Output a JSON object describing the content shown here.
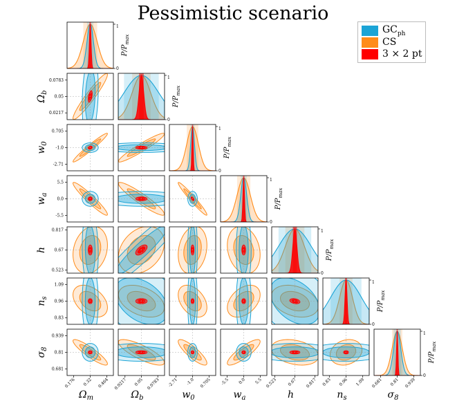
{
  "title": "Pessimistic scenario",
  "legend": [
    {
      "label": "GC",
      "sub": "ph",
      "color": "#1ba4d6"
    },
    {
      "label": "CS",
      "sub": "",
      "color": "#ff8c1a"
    },
    {
      "label": "3 × 2 pt",
      "sub": "",
      "color": "#ff0000"
    }
  ],
  "chart_data": {
    "type": "corner",
    "title": "Pessimistic scenario",
    "parameters": [
      {
        "name": "Ω",
        "sub": "m",
        "center": 0.32,
        "ticks": [
          "0.176",
          "0.32",
          "0.464"
        ],
        "tickvals": [
          0.176,
          0.32,
          0.464
        ],
        "range": [
          0.12,
          0.52
        ]
      },
      {
        "name": "Ω",
        "sub": "b",
        "center": 0.05,
        "ticks": [
          "0.0217",
          "0.05",
          "0.0783"
        ],
        "tickvals": [
          0.0217,
          0.05,
          0.0783
        ],
        "range": [
          0.01,
          0.09
        ]
      },
      {
        "name": "w",
        "sub": "0",
        "center": -1.0,
        "ticks": [
          "-2.71",
          "-1.0",
          "0.705"
        ],
        "tickvals": [
          -2.71,
          -1.0,
          0.705
        ],
        "range": [
          -3.4,
          1.4
        ]
      },
      {
        "name": "w",
        "sub": "a",
        "center": 0.0,
        "ticks": [
          "-5.5",
          "0.0",
          "5.5"
        ],
        "tickvals": [
          -5.5,
          0.0,
          5.5
        ],
        "range": [
          -7.7,
          7.7
        ]
      },
      {
        "name": "h",
        "sub": "",
        "center": 0.67,
        "ticks": [
          "0.523",
          "0.67",
          "0.817"
        ],
        "tickvals": [
          0.523,
          0.67,
          0.817
        ],
        "range": [
          0.5,
          0.84
        ]
      },
      {
        "name": "n",
        "sub": "s",
        "center": 0.96,
        "ticks": [
          "0.83",
          "0.96",
          "1.09"
        ],
        "tickvals": [
          0.83,
          0.96,
          1.09
        ],
        "range": [
          0.78,
          1.14
        ]
      },
      {
        "name": "σ",
        "sub": "8",
        "center": 0.81,
        "ticks": [
          "0.681",
          "0.81",
          "0.939"
        ],
        "tickvals": [
          0.681,
          0.81,
          0.939
        ],
        "range": [
          0.63,
          0.99
        ]
      }
    ],
    "diag_ylabel": "P/P",
    "diag_ylabel_sub": "max",
    "diag_yticks": [
      "0",
      "1"
    ],
    "probes": [
      {
        "name": "GC",
        "sub": "ph",
        "color": "#1ba4d6",
        "sigma": [
          0.028,
          0.03,
          0.2,
          1.0,
          0.12,
          0.12,
          0.028
        ],
        "corr": {
          "0-1": 0.2,
          "0-2": 0.0,
          "0-4": -0.1,
          "1-4": 0.93,
          "4-5": -0.4,
          "1-5": -0.4,
          "0-5": 0.0,
          "2-3": 0.0
        }
      },
      {
        "name": "CS",
        "sub": "",
        "color": "#ff8c1a",
        "sigma": [
          0.06,
          0.016,
          0.6,
          2.2,
          0.07,
          0.05,
          0.04
        ],
        "corr": {
          "0-1": 0.95,
          "0-2": 0.97,
          "1-2": 0.95,
          "0-3": -0.95,
          "1-3": -0.93,
          "2-3": -0.97,
          "0-4": 0.2,
          "1-4": 0.3,
          "2-4": 0.2,
          "3-4": -0.2,
          "0-5": -0.4,
          "1-5": -0.4,
          "2-5": -0.4,
          "3-5": 0.4,
          "4-5": -0.3,
          "0-6": -0.9,
          "1-6": -0.8,
          "2-6": -0.85,
          "3-6": 0.85,
          "4-6": -0.3,
          "5-6": 0.2
        }
      },
      {
        "name": "3 × 2 pt",
        "sub": "",
        "color": "#ff0000",
        "sigma": [
          0.007,
          0.004,
          0.06,
          0.25,
          0.015,
          0.008,
          0.005
        ],
        "corr": {
          "0-1": 0.5,
          "0-2": 0.3,
          "2-3": -0.7,
          "1-4": 0.6,
          "4-5": -0.3
        }
      }
    ]
  }
}
